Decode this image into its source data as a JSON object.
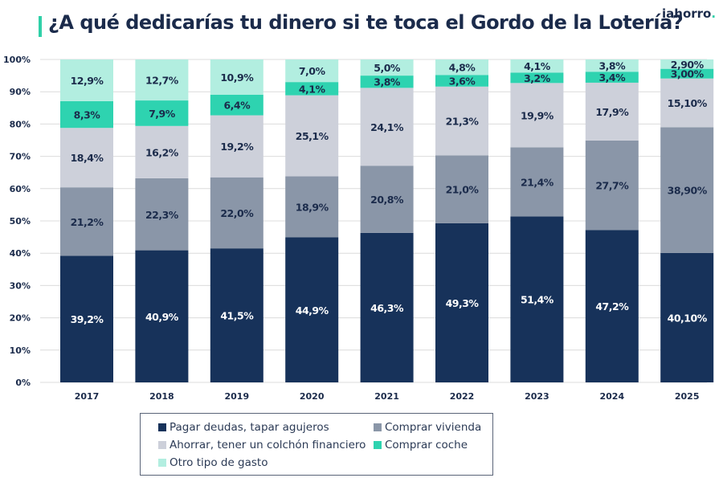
{
  "title": "¿A qué dedicarías tu dinero si te toca el Gordo de la Lotería?",
  "logo": "iahorro.",
  "chart_data": {
    "type": "bar",
    "stacked": true,
    "title": "¿A qué dedicarías tu dinero si te toca el Gordo de la Lotería?",
    "categories": [
      "2017",
      "2018",
      "2019",
      "2020",
      "2021",
      "2022",
      "2023",
      "2024",
      "2025"
    ],
    "ylim": [
      0,
      100
    ],
    "yticks": [
      "0%",
      "10%",
      "20%",
      "30%",
      "40%",
      "50%",
      "60%",
      "70%",
      "80%",
      "90%",
      "100%"
    ],
    "grid": true,
    "legend_placement": "bottom",
    "series": [
      {
        "name": "Pagar deudas, tapar agujeros",
        "color": "#17325a",
        "values": [
          39.2,
          40.9,
          41.5,
          44.9,
          46.3,
          49.3,
          51.4,
          47.2,
          40.1
        ],
        "labels": [
          "39,2%",
          "40,9%",
          "41,5%",
          "44,9%",
          "46,3%",
          "49,3%",
          "51,4%",
          "47,2%",
          "40,10%"
        ]
      },
      {
        "name": "Comprar vivienda",
        "color": "#8a96a8",
        "values": [
          21.2,
          22.3,
          22.0,
          18.9,
          20.8,
          21.0,
          21.4,
          27.7,
          38.9
        ],
        "labels": [
          "21,2%",
          "22,3%",
          "22,0%",
          "18,9%",
          "20,8%",
          "21,0%",
          "21,4%",
          "27,7%",
          "38,90%"
        ]
      },
      {
        "name": "Ahorrar, tener un colchón financiero",
        "color": "#cdd0da",
        "values": [
          18.4,
          16.2,
          19.2,
          25.1,
          24.1,
          21.3,
          19.9,
          17.9,
          15.1
        ],
        "labels": [
          "18,4%",
          "16,2%",
          "19,2%",
          "25,1%",
          "24,1%",
          "21,3%",
          "19,9%",
          "17,9%",
          "15,10%"
        ]
      },
      {
        "name": "Comprar coche",
        "color": "#2ed3b0",
        "values": [
          8.3,
          7.9,
          6.4,
          4.1,
          3.8,
          3.6,
          3.2,
          3.4,
          3.0
        ],
        "labels": [
          "8,3%",
          "7,9%",
          "6,4%",
          "4,1%",
          "3,8%",
          "3,6%",
          "3,2%",
          "3,4%",
          "3,00%"
        ]
      },
      {
        "name": "Otro tipo de gasto",
        "color": "#b2eee0",
        "values": [
          12.9,
          12.7,
          10.9,
          7.0,
          5.0,
          4.8,
          4.1,
          3.8,
          2.9
        ],
        "labels": [
          "12,9%",
          "12,7%",
          "10,9%",
          "7,0%",
          "5,0%",
          "4,8%",
          "4,1%",
          "3,8%",
          "2,90%"
        ]
      }
    ]
  }
}
